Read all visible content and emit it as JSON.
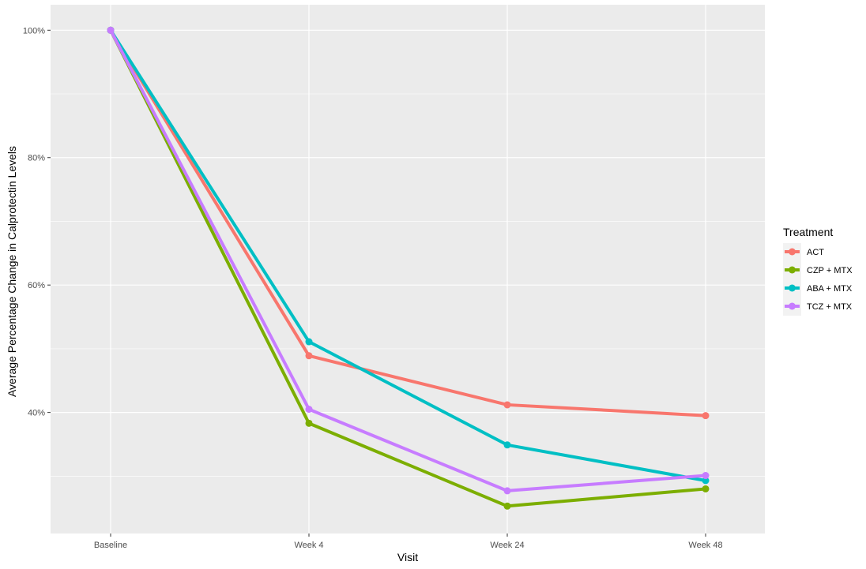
{
  "chart_data": {
    "type": "line",
    "xlabel": "Visit",
    "ylabel": "Average Percentage Change in Calprotectin Levels",
    "categories": [
      "Baseline",
      "Week 4",
      "Week 24",
      "Week 48"
    ],
    "ylim": [
      21.0,
      104.0
    ],
    "y_ticks": [
      40,
      60,
      80,
      100
    ],
    "y_tick_labels": [
      "40%",
      "60%",
      "80%",
      "100%"
    ],
    "grid": true,
    "legend": {
      "title": "Treatment",
      "placement": "right"
    },
    "series": [
      {
        "name": "ACT",
        "color": "#F8766D",
        "values": [
          100,
          48.9,
          41.2,
          39.5
        ]
      },
      {
        "name": "CZP + MTX",
        "color": "#7CAE00",
        "values": [
          100,
          38.3,
          25.3,
          28.0
        ]
      },
      {
        "name": "ABA + MTX",
        "color": "#00BFC4",
        "values": [
          100,
          51.1,
          34.9,
          29.3
        ]
      },
      {
        "name": "TCZ + MTX",
        "color": "#C77CFF",
        "values": [
          100,
          40.5,
          27.7,
          30.1
        ]
      }
    ]
  }
}
